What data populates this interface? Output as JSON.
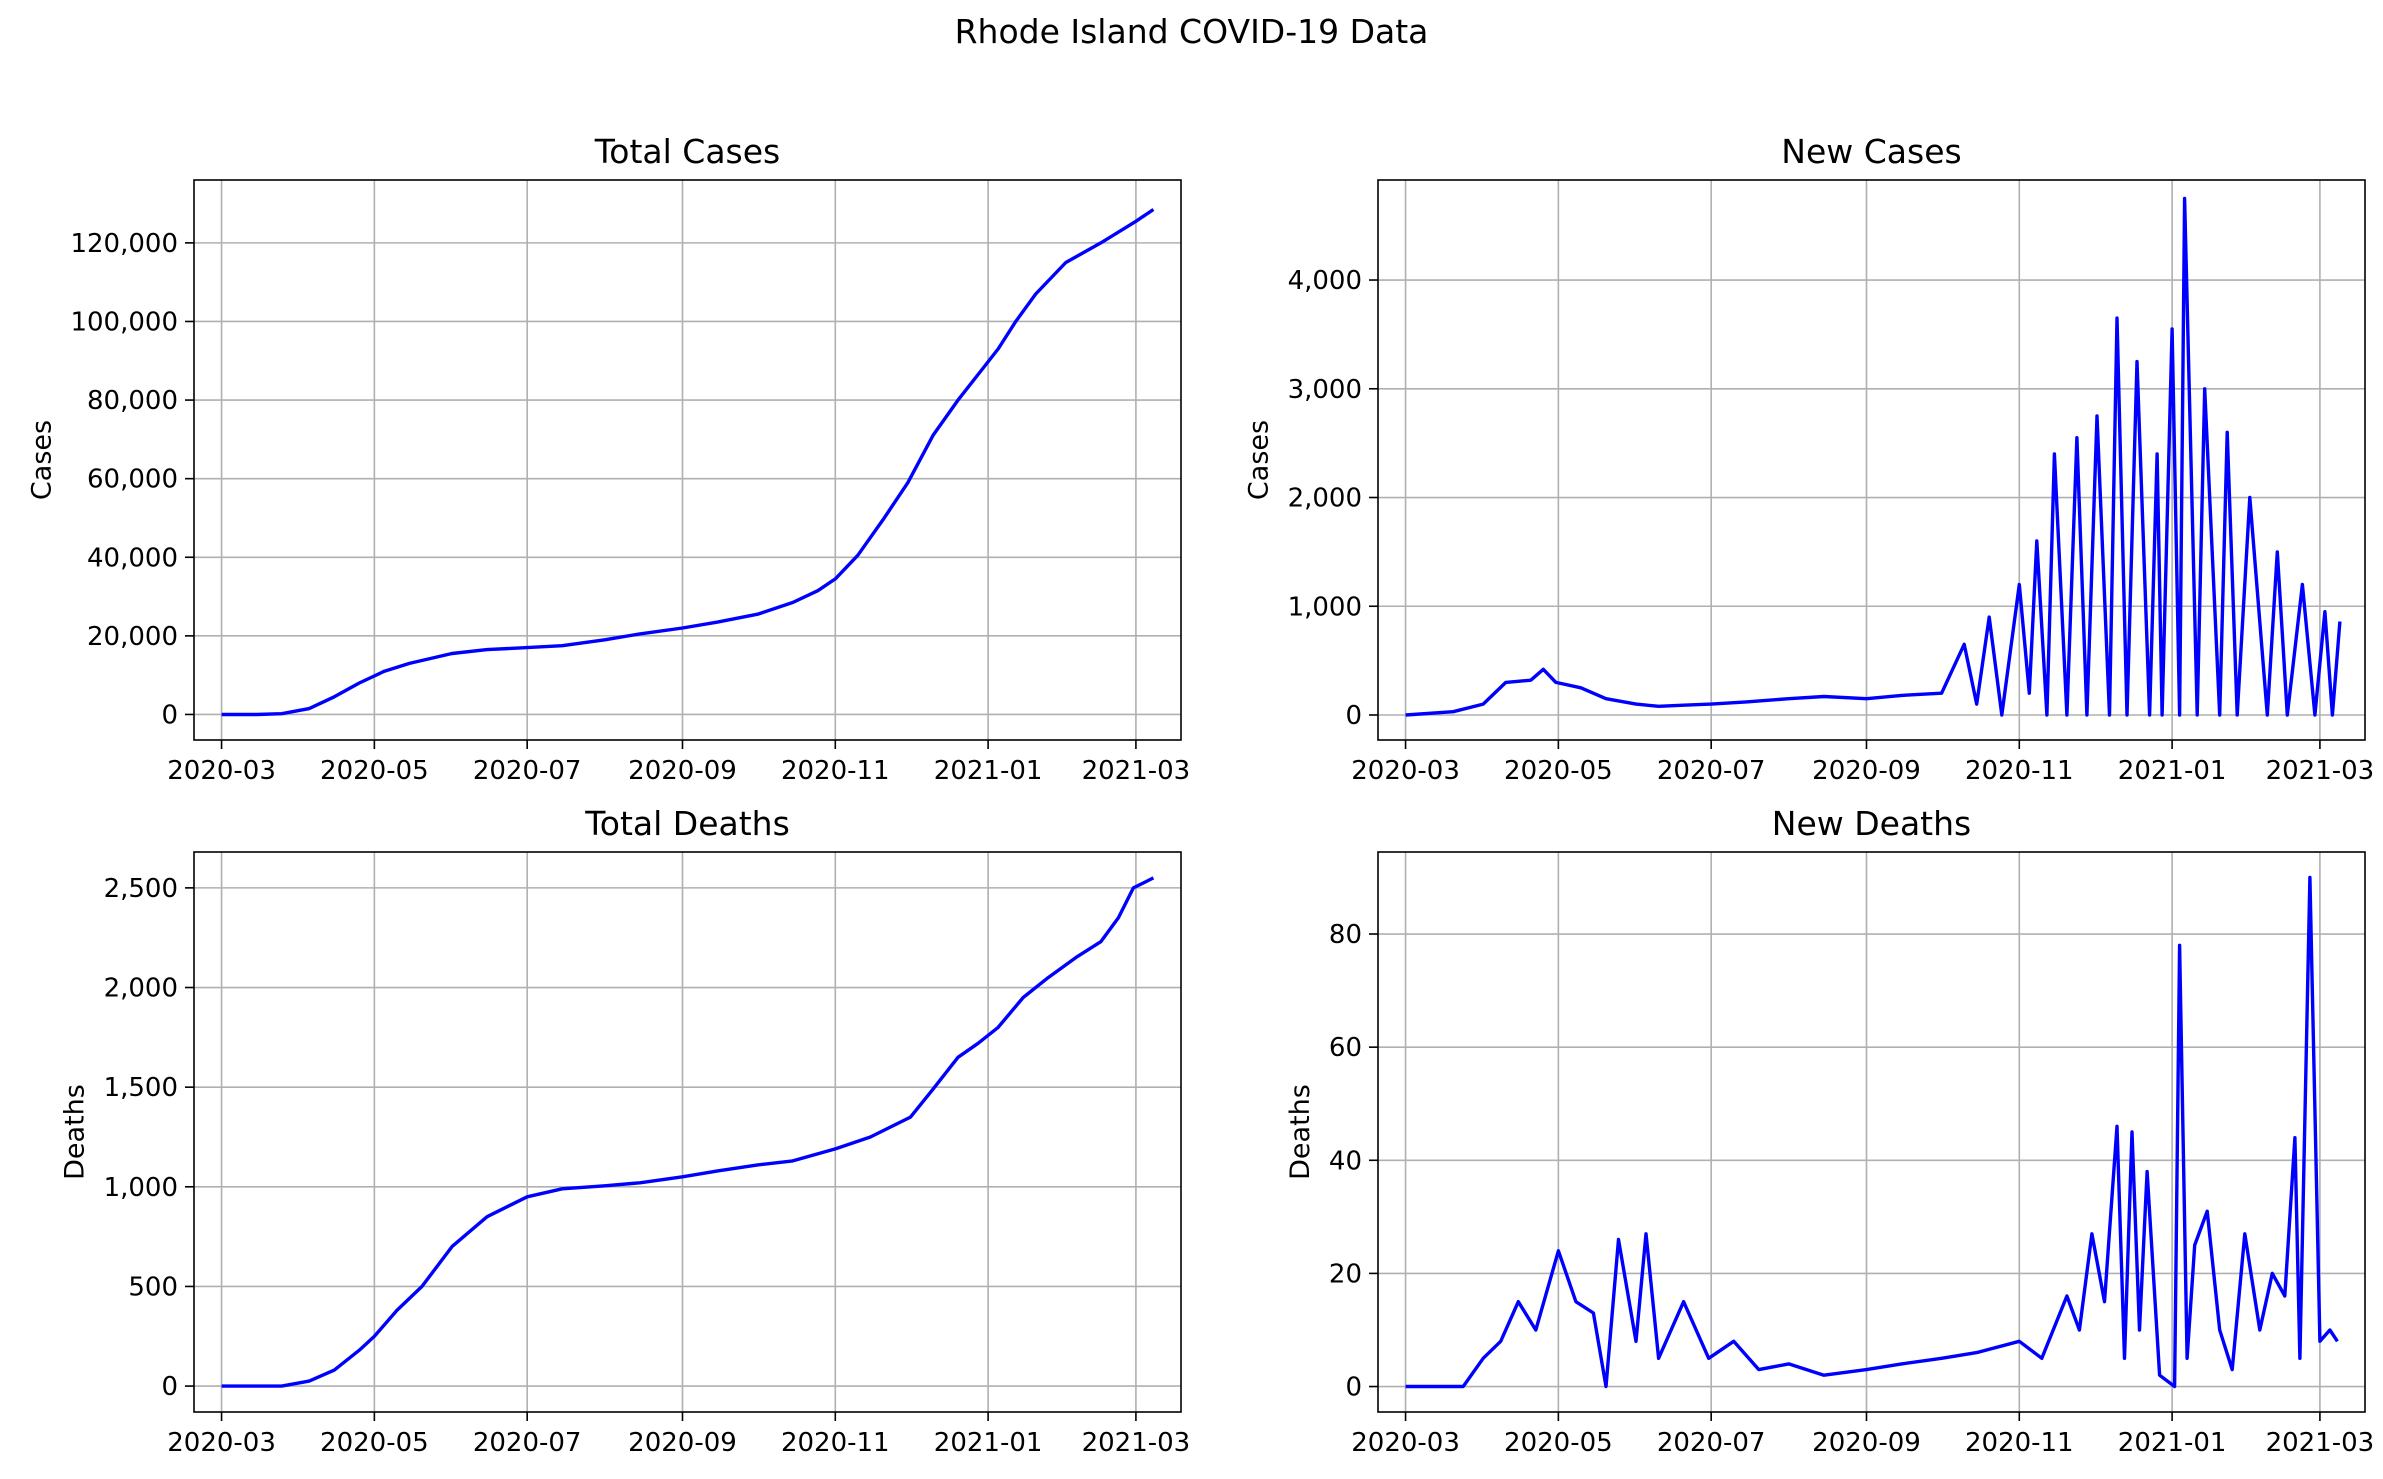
{
  "suptitle": "Rhode Island COVID-19 Data",
  "line_color": "#0000ff",
  "chart_data": [
    {
      "type": "line",
      "title": "Total Cases",
      "xlabel": "",
      "ylabel": "Cases",
      "x_ticks": [
        "2020-03",
        "2020-05",
        "2020-07",
        "2020-09",
        "2020-11",
        "2021-01",
        "2021-03"
      ],
      "y_ticks": [
        "0",
        "20,000",
        "40,000",
        "60,000",
        "80,000",
        "100,000",
        "120,000"
      ],
      "xlim": [
        "2020-02-19",
        "2021-03-19"
      ],
      "ylim": [
        -6500,
        136000
      ],
      "grid": true,
      "x": [
        "2020-03-01",
        "2020-03-15",
        "2020-03-25",
        "2020-04-05",
        "2020-04-15",
        "2020-04-25",
        "2020-05-05",
        "2020-05-15",
        "2020-06-01",
        "2020-06-15",
        "2020-07-01",
        "2020-07-15",
        "2020-08-01",
        "2020-08-15",
        "2020-09-01",
        "2020-09-15",
        "2020-10-01",
        "2020-10-15",
        "2020-10-25",
        "2020-11-01",
        "2020-11-10",
        "2020-11-20",
        "2020-11-30",
        "2020-12-10",
        "2020-12-20",
        "2020-12-28",
        "2021-01-05",
        "2021-01-12",
        "2021-01-20",
        "2021-02-01",
        "2021-02-15",
        "2021-03-01",
        "2021-03-08"
      ],
      "y": [
        0,
        0,
        200,
        1500,
        4500,
        8000,
        11000,
        13000,
        15500,
        16500,
        17000,
        17500,
        19000,
        20500,
        22000,
        23500,
        25500,
        28500,
        31500,
        34500,
        40500,
        49500,
        59000,
        71000,
        80000,
        86500,
        93000,
        100000,
        107000,
        115000,
        120000,
        125500,
        128500
      ]
    },
    {
      "type": "line",
      "title": "New Cases",
      "xlabel": "",
      "ylabel": "Cases",
      "x_ticks": [
        "2020-03",
        "2020-05",
        "2020-07",
        "2020-09",
        "2020-11",
        "2021-01",
        "2021-03"
      ],
      "y_ticks": [
        "0",
        "1,000",
        "2,000",
        "3,000",
        "4,000"
      ],
      "xlim": [
        "2020-02-19",
        "2021-03-19"
      ],
      "ylim": [
        -230,
        4920
      ],
      "grid": true,
      "x": [
        "2020-03-01",
        "2020-03-20",
        "2020-04-01",
        "2020-04-10",
        "2020-04-20",
        "2020-04-25",
        "2020-04-30",
        "2020-05-10",
        "2020-05-20",
        "2020-06-01",
        "2020-06-10",
        "2020-06-20",
        "2020-07-01",
        "2020-07-15",
        "2020-08-01",
        "2020-08-15",
        "2020-09-01",
        "2020-09-15",
        "2020-10-01",
        "2020-10-10",
        "2020-10-15",
        "2020-10-20",
        "2020-10-25",
        "2020-11-01",
        "2020-11-05",
        "2020-11-08",
        "2020-11-12",
        "2020-11-15",
        "2020-11-20",
        "2020-11-24",
        "2020-11-28",
        "2020-12-02",
        "2020-12-07",
        "2020-12-10",
        "2020-12-14",
        "2020-12-18",
        "2020-12-23",
        "2020-12-26",
        "2020-12-28",
        "2021-01-01",
        "2021-01-04",
        "2021-01-06",
        "2021-01-11",
        "2021-01-14",
        "2021-01-20",
        "2021-01-23",
        "2021-01-27",
        "2021-02-01",
        "2021-02-08",
        "2021-02-12",
        "2021-02-16",
        "2021-02-22",
        "2021-02-27",
        "2021-03-03",
        "2021-03-06",
        "2021-03-09"
      ],
      "y": [
        0,
        30,
        100,
        300,
        320,
        420,
        300,
        250,
        150,
        100,
        80,
        90,
        100,
        120,
        150,
        170,
        150,
        180,
        200,
        650,
        100,
        900,
        0,
        1200,
        200,
        1600,
        0,
        2400,
        0,
        2550,
        0,
        2750,
        0,
        3650,
        0,
        3250,
        0,
        2400,
        0,
        3550,
        0,
        4750,
        0,
        3000,
        0,
        2600,
        0,
        2000,
        0,
        1500,
        0,
        1200,
        0,
        950,
        0,
        860
      ]
    },
    {
      "type": "line",
      "title": "Total Deaths",
      "xlabel": "",
      "ylabel": "Deaths",
      "x_ticks": [
        "2020-03",
        "2020-05",
        "2020-07",
        "2020-09",
        "2020-11",
        "2021-01",
        "2021-03"
      ],
      "y_ticks": [
        "0",
        "500",
        "1,000",
        "1,500",
        "2,000",
        "2,500"
      ],
      "xlim": [
        "2020-02-19",
        "2021-03-19"
      ],
      "ylim": [
        -130,
        2680
      ],
      "grid": true,
      "x": [
        "2020-03-01",
        "2020-03-25",
        "2020-04-05",
        "2020-04-15",
        "2020-04-25",
        "2020-05-01",
        "2020-05-10",
        "2020-05-20",
        "2020-06-01",
        "2020-06-15",
        "2020-07-01",
        "2020-07-15",
        "2020-08-01",
        "2020-08-15",
        "2020-09-01",
        "2020-09-15",
        "2020-10-01",
        "2020-10-15",
        "2020-11-01",
        "2020-11-15",
        "2020-12-01",
        "2020-12-10",
        "2020-12-20",
        "2020-12-28",
        "2021-01-05",
        "2021-01-15",
        "2021-01-25",
        "2021-02-05",
        "2021-02-15",
        "2021-02-22",
        "2021-02-28",
        "2021-03-08"
      ],
      "y": [
        0,
        0,
        25,
        80,
        180,
        250,
        380,
        500,
        700,
        850,
        950,
        990,
        1005,
        1020,
        1050,
        1080,
        1110,
        1130,
        1190,
        1250,
        1350,
        1490,
        1650,
        1720,
        1800,
        1950,
        2050,
        2150,
        2230,
        2350,
        2500,
        2550
      ]
    },
    {
      "type": "line",
      "title": "New Deaths",
      "xlabel": "",
      "ylabel": "Deaths",
      "x_ticks": [
        "2020-03",
        "2020-05",
        "2020-07",
        "2020-09",
        "2020-11",
        "2021-01",
        "2021-03"
      ],
      "y_ticks": [
        "0",
        "20",
        "40",
        "60",
        "80"
      ],
      "xlim": [
        "2020-02-19",
        "2021-03-19"
      ],
      "ylim": [
        -4.5,
        94.5
      ],
      "grid": true,
      "x": [
        "2020-03-01",
        "2020-03-24",
        "2020-04-01",
        "2020-04-08",
        "2020-04-15",
        "2020-04-22",
        "2020-05-01",
        "2020-05-08",
        "2020-05-15",
        "2020-05-20",
        "2020-05-25",
        "2020-06-01",
        "2020-06-05",
        "2020-06-10",
        "2020-06-20",
        "2020-06-30",
        "2020-07-10",
        "2020-07-20",
        "2020-08-01",
        "2020-08-15",
        "2020-09-01",
        "2020-09-15",
        "2020-10-01",
        "2020-10-15",
        "2020-11-01",
        "2020-11-10",
        "2020-11-20",
        "2020-11-25",
        "2020-11-30",
        "2020-12-05",
        "2020-12-10",
        "2020-12-13",
        "2020-12-16",
        "2020-12-19",
        "2020-12-22",
        "2020-12-27",
        "2021-01-02",
        "2021-01-04",
        "2021-01-07",
        "2021-01-10",
        "2021-01-15",
        "2021-01-20",
        "2021-01-25",
        "2021-01-30",
        "2021-02-05",
        "2021-02-10",
        "2021-02-15",
        "2021-02-19",
        "2021-02-21",
        "2021-02-25",
        "2021-03-01",
        "2021-03-05",
        "2021-03-08"
      ],
      "y": [
        0,
        0,
        5,
        8,
        15,
        10,
        24,
        15,
        13,
        0,
        26,
        8,
        27,
        5,
        15,
        5,
        8,
        3,
        4,
        2,
        3,
        4,
        5,
        6,
        8,
        5,
        16,
        10,
        27,
        15,
        46,
        5,
        45,
        10,
        38,
        2,
        0,
        78,
        5,
        25,
        31,
        10,
        3,
        27,
        10,
        20,
        16,
        44,
        5,
        90,
        8,
        10,
        8
      ]
    }
  ]
}
